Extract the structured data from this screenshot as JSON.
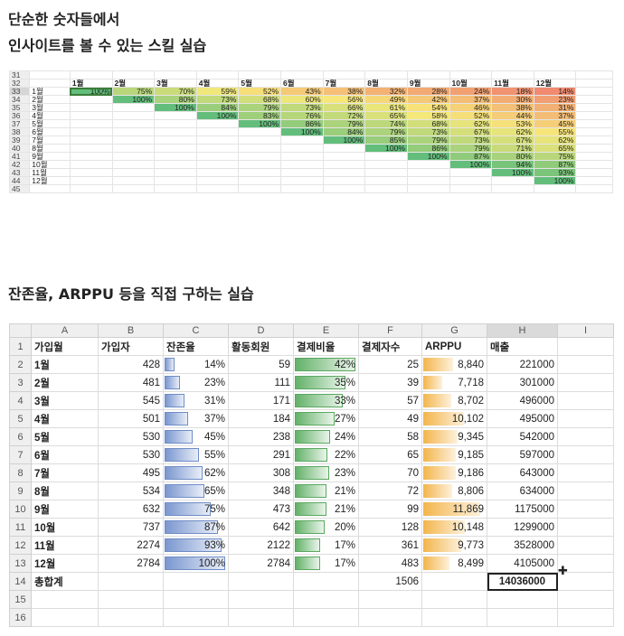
{
  "headings": {
    "line1": "단순한 숫자들에서",
    "line2": "인사이트를 볼 수 있는 스킬 실습",
    "line3": "잔존율, ARPPU 등을 직접 구하는 실습"
  },
  "cohort": {
    "row_numbers": [
      "31",
      "32",
      "33",
      "34",
      "35",
      "36",
      "37",
      "38",
      "39",
      "40",
      "41",
      "42",
      "43",
      "44",
      "45"
    ],
    "month_headers": [
      "1월",
      "2월",
      "3월",
      "4월",
      "5월",
      "6월",
      "7월",
      "8월",
      "9월",
      "10월",
      "11월",
      "12월"
    ],
    "row_labels": [
      "1월",
      "2월",
      "3월",
      "4월",
      "5월",
      "6월",
      "7월",
      "8월",
      "9월",
      "10월",
      "11월",
      "12월"
    ],
    "grid": [
      [
        "100%",
        "75%",
        "70%",
        "59%",
        "52%",
        "43%",
        "38%",
        "32%",
        "28%",
        "24%",
        "18%",
        "14%"
      ],
      [
        "",
        "100%",
        "80%",
        "73%",
        "68%",
        "60%",
        "56%",
        "49%",
        "42%",
        "37%",
        "30%",
        "23%"
      ],
      [
        "",
        "",
        "100%",
        "84%",
        "79%",
        "73%",
        "66%",
        "61%",
        "54%",
        "46%",
        "38%",
        "31%"
      ],
      [
        "",
        "",
        "",
        "100%",
        "83%",
        "76%",
        "72%",
        "65%",
        "58%",
        "52%",
        "44%",
        "37%"
      ],
      [
        "",
        "",
        "",
        "",
        "100%",
        "86%",
        "79%",
        "74%",
        "68%",
        "62%",
        "53%",
        "45%"
      ],
      [
        "",
        "",
        "",
        "",
        "",
        "100%",
        "84%",
        "79%",
        "73%",
        "67%",
        "62%",
        "55%"
      ],
      [
        "",
        "",
        "",
        "",
        "",
        "",
        "100%",
        "85%",
        "79%",
        "73%",
        "67%",
        "62%"
      ],
      [
        "",
        "",
        "",
        "",
        "",
        "",
        "",
        "100%",
        "86%",
        "79%",
        "71%",
        "65%"
      ],
      [
        "",
        "",
        "",
        "",
        "",
        "",
        "",
        "",
        "100%",
        "87%",
        "80%",
        "75%"
      ],
      [
        "",
        "",
        "",
        "",
        "",
        "",
        "",
        "",
        "",
        "100%",
        "94%",
        "87%"
      ],
      [
        "",
        "",
        "",
        "",
        "",
        "",
        "",
        "",
        "",
        "",
        "100%",
        "93%"
      ],
      [
        "",
        "",
        "",
        "",
        "",
        "",
        "",
        "",
        "",
        "",
        "",
        "100%"
      ]
    ],
    "scale_colors": {
      "low": "#f08a70",
      "mid": "#f7e97a",
      "high": "#63be7b"
    }
  },
  "sheet": {
    "column_letters": [
      "A",
      "B",
      "C",
      "D",
      "E",
      "F",
      "G",
      "H",
      "I"
    ],
    "headers": [
      "가입월",
      "가입자",
      "잔존율",
      "활동회원",
      "결제비율",
      "결제자수",
      "ARPPU",
      "매출"
    ],
    "header_row_number": "1",
    "rows": [
      {
        "n": "2",
        "month": "1월",
        "sub": "428",
        "ret": "14%",
        "ret_v": 0.14,
        "act": "59",
        "pay": "42%",
        "pay_v": 0.42,
        "payers": "25",
        "arppu": "8,840",
        "arppu_v": 8840,
        "rev": "221000"
      },
      {
        "n": "3",
        "month": "2월",
        "sub": "481",
        "ret": "23%",
        "ret_v": 0.23,
        "act": "111",
        "pay": "35%",
        "pay_v": 0.35,
        "payers": "39",
        "arppu": "7,718",
        "arppu_v": 7718,
        "rev": "301000"
      },
      {
        "n": "4",
        "month": "3월",
        "sub": "545",
        "ret": "31%",
        "ret_v": 0.31,
        "act": "171",
        "pay": "33%",
        "pay_v": 0.33,
        "payers": "57",
        "arppu": "8,702",
        "arppu_v": 8702,
        "rev": "496000"
      },
      {
        "n": "5",
        "month": "4월",
        "sub": "501",
        "ret": "37%",
        "ret_v": 0.37,
        "act": "184",
        "pay": "27%",
        "pay_v": 0.27,
        "payers": "49",
        "arppu": "10,102",
        "arppu_v": 10102,
        "rev": "495000"
      },
      {
        "n": "6",
        "month": "5월",
        "sub": "530",
        "ret": "45%",
        "ret_v": 0.45,
        "act": "238",
        "pay": "24%",
        "pay_v": 0.24,
        "payers": "58",
        "arppu": "9,345",
        "arppu_v": 9345,
        "rev": "542000"
      },
      {
        "n": "7",
        "month": "6월",
        "sub": "530",
        "ret": "55%",
        "ret_v": 0.55,
        "act": "291",
        "pay": "22%",
        "pay_v": 0.22,
        "payers": "65",
        "arppu": "9,185",
        "arppu_v": 9185,
        "rev": "597000"
      },
      {
        "n": "8",
        "month": "7월",
        "sub": "495",
        "ret": "62%",
        "ret_v": 0.62,
        "act": "308",
        "pay": "23%",
        "pay_v": 0.23,
        "payers": "70",
        "arppu": "9,186",
        "arppu_v": 9186,
        "rev": "643000"
      },
      {
        "n": "9",
        "month": "8월",
        "sub": "534",
        "ret": "65%",
        "ret_v": 0.65,
        "act": "348",
        "pay": "21%",
        "pay_v": 0.21,
        "payers": "72",
        "arppu": "8,806",
        "arppu_v": 8806,
        "rev": "634000"
      },
      {
        "n": "10",
        "month": "9월",
        "sub": "632",
        "ret": "75%",
        "ret_v": 0.75,
        "act": "473",
        "pay": "21%",
        "pay_v": 0.21,
        "payers": "99",
        "arppu": "11,869",
        "arppu_v": 11869,
        "rev": "1175000"
      },
      {
        "n": "11",
        "month": "10월",
        "sub": "737",
        "ret": "87%",
        "ret_v": 0.87,
        "act": "642",
        "pay": "20%",
        "pay_v": 0.2,
        "payers": "128",
        "arppu": "10,148",
        "arppu_v": 10148,
        "rev": "1299000"
      },
      {
        "n": "12",
        "month": "11월",
        "sub": "2274",
        "ret": "93%",
        "ret_v": 0.93,
        "act": "2122",
        "pay": "17%",
        "pay_v": 0.17,
        "payers": "361",
        "arppu": "9,773",
        "arppu_v": 9773,
        "rev": "3528000"
      },
      {
        "n": "13",
        "month": "12월",
        "sub": "2784",
        "ret": "100%",
        "ret_v": 1.0,
        "act": "2784",
        "pay": "17%",
        "pay_v": 0.17,
        "payers": "483",
        "arppu": "8,499",
        "arppu_v": 8499,
        "rev": "4105000"
      }
    ],
    "total": {
      "n": "14",
      "label": "총합계",
      "payers": "1506",
      "rev": "14036000"
    },
    "empty_rows": [
      "15",
      "16"
    ],
    "bar_colors": {
      "retention": "#7b97cf",
      "payment": "#63b169",
      "arppu": "#f3b54b"
    }
  }
}
